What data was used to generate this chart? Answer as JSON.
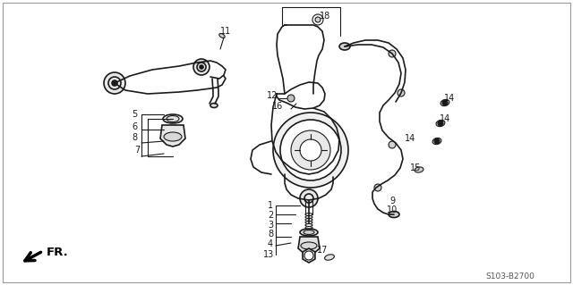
{
  "bg_color": "#ffffff",
  "ref_code": "S103-B2700",
  "label_color": "#1a1a1a",
  "dc": "#1a1a1a",
  "lw_main": 1.2,
  "lw_thin": 0.8,
  "lw_leader": 0.7,
  "fs_num": 7.0,
  "fs_ref": 6.5,
  "fs_fr": 9.5
}
